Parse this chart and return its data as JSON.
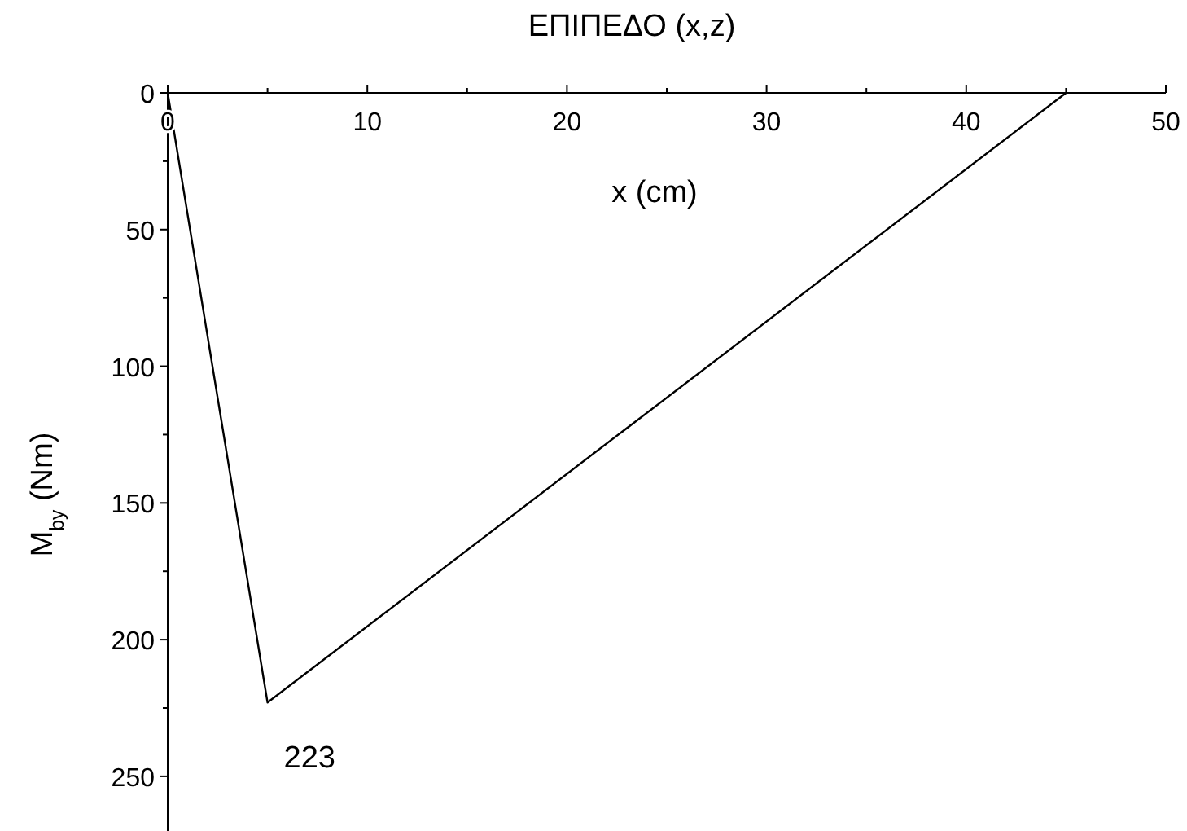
{
  "chart_data": {
    "type": "line",
    "title": "ΕΠΙΠΕΔΟ (x,z)",
    "xlabel": "x (cm)",
    "ylabel": "M$_{by}$ (Nm)",
    "x": [
      0,
      5,
      45
    ],
    "series": [
      {
        "color": "#000000",
        "values": [
          0,
          223,
          0
        ]
      }
    ],
    "xlim": [
      0,
      50
    ],
    "ylim": [
      270,
      0
    ],
    "xticks": [
      0,
      {
        "value": 5,
        "label": null
      },
      10,
      {
        "value": 15,
        "label": null
      },
      20,
      {
        "value": 25,
        "label": null
      },
      30,
      {
        "value": 35,
        "label": null
      },
      40,
      {
        "value": 45,
        "label": null
      },
      50
    ],
    "yticks": [
      0,
      {
        "value": 25,
        "label": null
      },
      50,
      {
        "value": 75,
        "label": null
      },
      100,
      {
        "value": 125,
        "label": null
      },
      150,
      {
        "value": 175,
        "label": null
      },
      200,
      {
        "value": 225,
        "label": null
      },
      250
    ],
    "annotations": [
      {
        "text": "223",
        "x": 5,
        "y": 223
      }
    ],
    "grid": false,
    "marker": "none",
    "line_style": "solid"
  }
}
